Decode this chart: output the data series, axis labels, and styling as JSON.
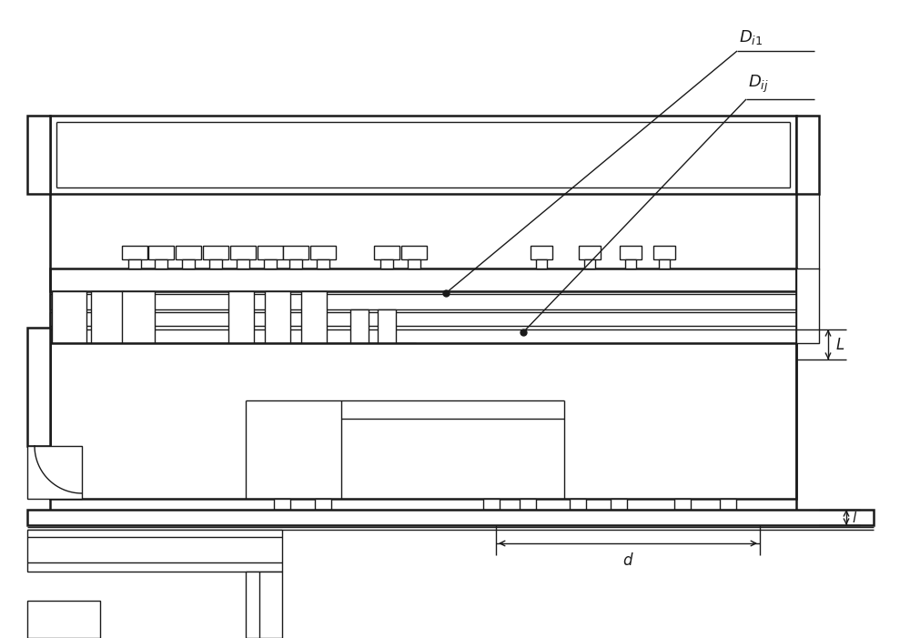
{
  "bg_color": "#ffffff",
  "line_color": "#1a1a1a",
  "lw": 1.0,
  "tlw": 1.8,
  "fig_width": 10.0,
  "fig_height": 7.01
}
